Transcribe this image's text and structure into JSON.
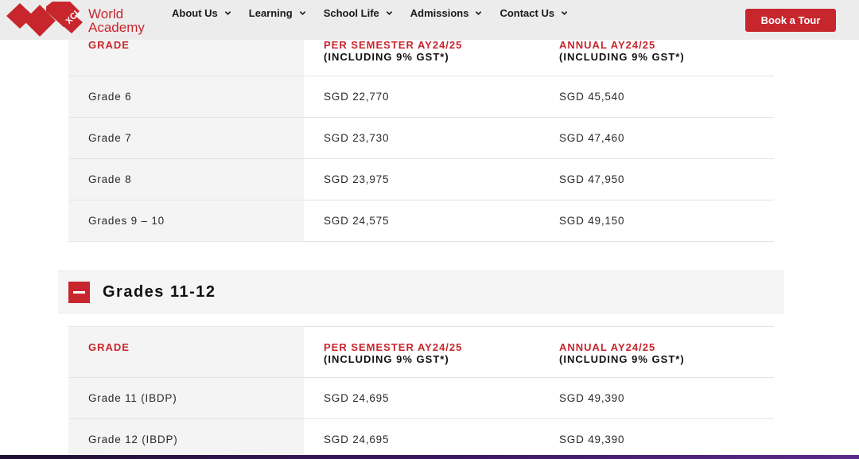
{
  "header": {
    "logo_text_line1": "World",
    "logo_text_line2": "Academy",
    "logo_mark_letters": "XCL",
    "nav": [
      {
        "label": "About Us"
      },
      {
        "label": "Learning"
      },
      {
        "label": "School Life"
      },
      {
        "label": "Admissions"
      },
      {
        "label": "Contact Us"
      }
    ],
    "cta_label": "Book a Tour"
  },
  "colors": {
    "brand_red": "#c7262d",
    "header_bg": "#ececec"
  },
  "table1": {
    "columns": [
      {
        "line1": "GRADE",
        "line2": ""
      },
      {
        "line1": "PER SEMESTER AY24/25",
        "line2": "(INCLUDING 9% GST*)"
      },
      {
        "line1": "ANNUAL AY24/25",
        "line2": "(INCLUDING 9% GST*)"
      }
    ],
    "rows": [
      [
        "Grade 6",
        "SGD 22,770",
        "SGD 45,540"
      ],
      [
        "Grade 7",
        "SGD 23,730",
        "SGD 47,460"
      ],
      [
        "Grade 8",
        "SGD 23,975",
        "SGD 47,950"
      ],
      [
        "Grades 9 – 10",
        "SGD 24,575",
        "SGD 49,150"
      ]
    ]
  },
  "accordion": {
    "title": "Grades 11-12",
    "icon": "minus-icon",
    "expanded": true
  },
  "table2": {
    "columns": [
      {
        "line1": "GRADE",
        "line2": ""
      },
      {
        "line1": "PER SEMESTER AY24/25",
        "line2": "(INCLUDING 9% GST*)"
      },
      {
        "line1": "ANNUAL AY24/25",
        "line2": "(INCLUDING 9% GST*)"
      }
    ],
    "rows": [
      [
        "Grade 11 (IBDP)",
        "SGD 24,695",
        "SGD 49,390"
      ],
      [
        "Grade 12 (IBDP)",
        "SGD 24,695",
        "SGD 49,390"
      ]
    ]
  }
}
